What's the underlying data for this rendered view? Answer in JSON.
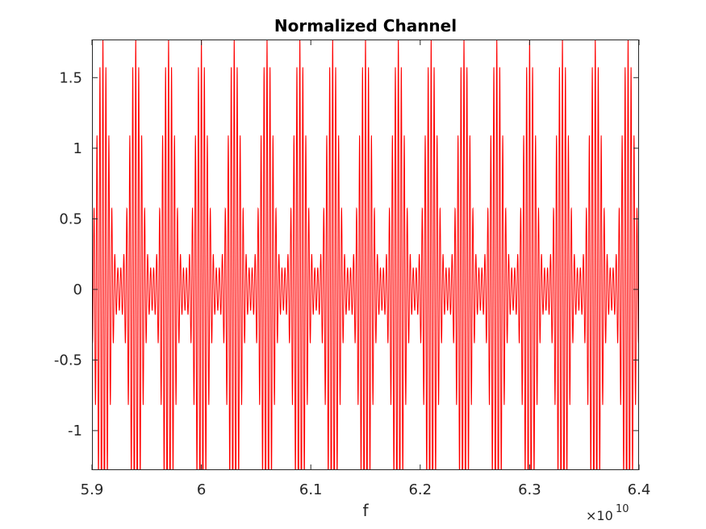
{
  "chart_data": {
    "type": "line",
    "title": "Normalized Channel",
    "xlabel": "f",
    "ylabel": "",
    "x_exponent_label": "×10",
    "x_exponent_power": "10",
    "xlim": [
      5.9,
      6.4
    ],
    "ylim": [
      -1.28,
      1.77
    ],
    "xticks": [
      5.9,
      6,
      6.1,
      6.2,
      6.3,
      6.4
    ],
    "xtick_labels": [
      "5.9",
      "6",
      "6.1",
      "6.2",
      "6.3",
      "6.4"
    ],
    "yticks": [
      -1,
      -0.5,
      0,
      0.5,
      1,
      1.5
    ],
    "ytick_labels": [
      "-1",
      "-0.5",
      "0",
      "0.5",
      "1",
      "1.5"
    ],
    "grid": false,
    "series": [
      {
        "color": "#ff0000",
        "model": {
          "envelope_period": 0.03,
          "envelope_peak_x": 5.94,
          "carrier_cycles_per_envelope": 11,
          "max_amplitude": 1.78,
          "min_amplitude": 0.15
        }
      }
    ]
  }
}
